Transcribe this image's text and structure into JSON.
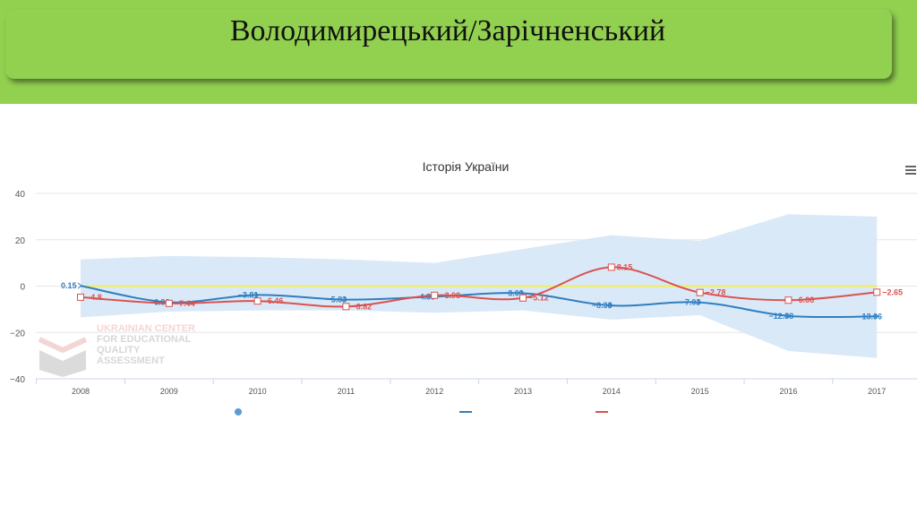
{
  "slide": {
    "title": "Володимирецький/Зарічненський"
  },
  "watermark": {
    "line1": "UKRAINIAN CENTER",
    "line2": "FOR EDUCATIONAL",
    "line3": "QUALITY",
    "line4": "ASSESSMENT"
  },
  "colors": {
    "banner": "#92d050",
    "series_blue": "#2f7ec1",
    "series_red": "#d9534f",
    "band": "#d6e7f7",
    "zero_line": "#f2ee5c"
  },
  "chart_data": {
    "type": "line",
    "title": "Історія України",
    "categories": [
      "2008",
      "2009",
      "2010",
      "2011",
      "2012",
      "2013",
      "2014",
      "2015",
      "2016",
      "2017"
    ],
    "ylim": [
      -40,
      40
    ],
    "yticks": [
      "40",
      "20",
      "0",
      "−20",
      "−40"
    ],
    "grid": true,
    "legend_position": "bottom",
    "series": [
      {
        "values": [
          0.15,
          -6.98,
          -3.81,
          -5.83,
          -4.55,
          -3.09,
          -8.38,
          -7.03,
          -12.88,
          -13.06
        ],
        "labels": [
          "0.15",
          "−6.98",
          "−3.81",
          "−5.83",
          "−4.55",
          "−3.09",
          "−8.38",
          "−7.03",
          "−12.88",
          "−13.06"
        ],
        "marker": "circle",
        "color": "#2f7ec1"
      },
      {
        "values": [
          -4.8,
          -7.44,
          -6.46,
          -8.82,
          -3.98,
          -5.12,
          8.15,
          -2.78,
          -6.08,
          -2.65
        ],
        "labels": [
          "−4.8",
          "−7.44",
          "−6.46",
          "−8.82",
          "−3.98",
          "−5.12",
          "8.15",
          "−2.78",
          "−6.08",
          "−2.65"
        ],
        "marker": "square",
        "color": "#d9534f"
      }
    ],
    "band": {
      "upper": [
        11.5,
        13,
        12.5,
        11.5,
        10,
        16,
        22,
        19.5,
        31,
        30
      ],
      "lower": [
        -13.5,
        -11,
        -10.5,
        -10.5,
        -11.5,
        -10.5,
        -14.5,
        -12.5,
        -28,
        -31
      ]
    },
    "reference_line": 0
  }
}
